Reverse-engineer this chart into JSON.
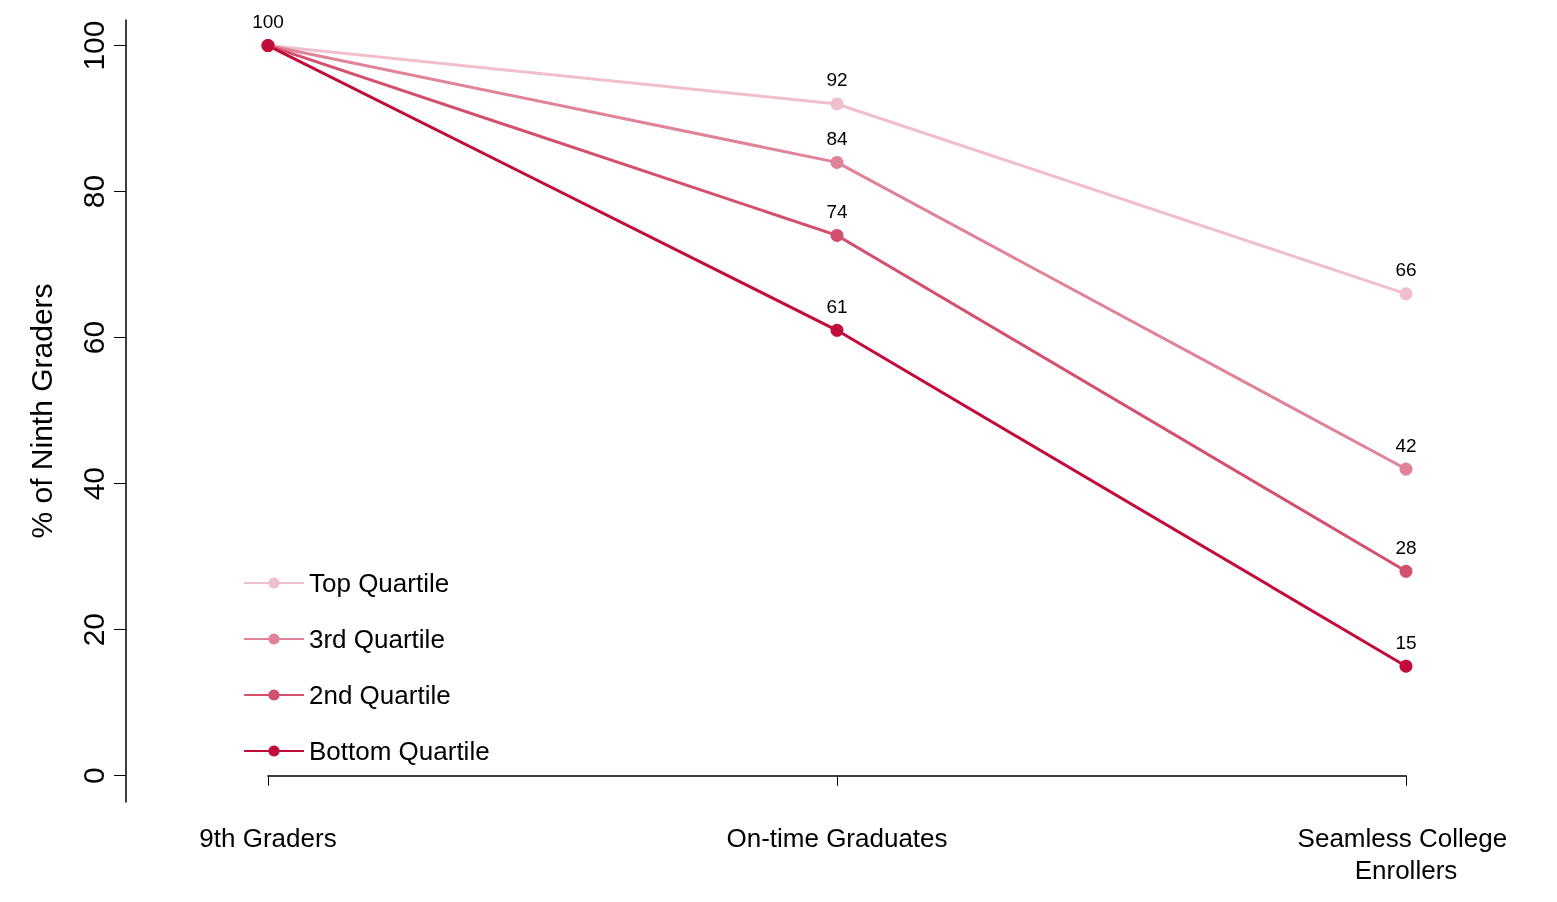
{
  "chart_data": {
    "type": "line",
    "ylabel": "% of Ninth Graders",
    "categories": [
      "9th Graders",
      "On-time Graduates",
      "Seamless College Enrollers"
    ],
    "series": [
      {
        "name": "Top Quartile",
        "color": "#efc0cc",
        "values": [
          100,
          92,
          66
        ],
        "value_labels": [
          "100",
          "92",
          "66"
        ]
      },
      {
        "name": "3rd Quartile",
        "color": "#e08399",
        "values": [
          100,
          84,
          42
        ],
        "value_labels": [
          null,
          "84",
          "42"
        ]
      },
      {
        "name": "2nd Quartile",
        "color": "#d4506f",
        "values": [
          100,
          74,
          28
        ],
        "value_labels": [
          null,
          "74",
          "28"
        ]
      },
      {
        "name": "Bottom Quartile",
        "color": "#c20c3c",
        "values": [
          100,
          61,
          15
        ],
        "value_labels": [
          null,
          "61",
          "15"
        ]
      }
    ],
    "ylim": [
      -3.6,
      103.5
    ],
    "yticks": [
      0,
      20,
      40,
      60,
      80,
      100
    ],
    "grid": false,
    "legend": "bottom left",
    "marker": "circle",
    "line_style": "solid"
  }
}
